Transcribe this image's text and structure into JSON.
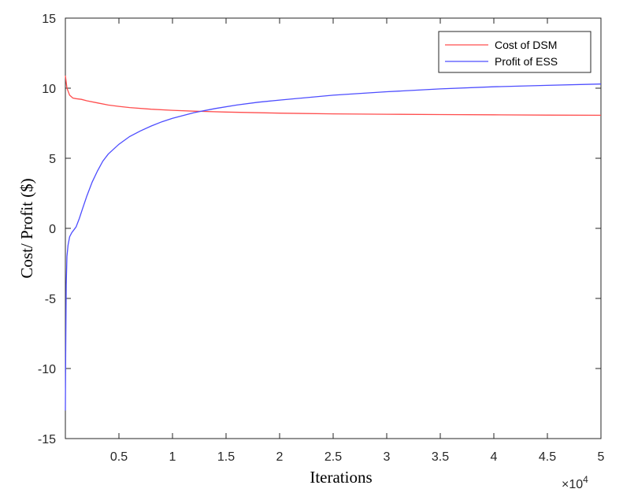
{
  "chart_data": {
    "type": "line",
    "title": "",
    "xlabel": "Iterations",
    "ylabel": "Cost/ Profit ($)",
    "xlim": [
      0,
      50000
    ],
    "ylim": [
      -15,
      15
    ],
    "x_exponent_label": "×10",
    "x_exponent_power": "4",
    "xticks": [
      5000,
      10000,
      15000,
      20000,
      25000,
      30000,
      35000,
      40000,
      45000,
      50000
    ],
    "xtick_labels": [
      "0.5",
      "1",
      "1.5",
      "2",
      "2.5",
      "3",
      "3.5",
      "4",
      "4.5",
      "5"
    ],
    "yticks": [
      -15,
      -10,
      -5,
      0,
      5,
      10,
      15
    ],
    "ytick_labels": [
      "-15",
      "-10",
      "-5",
      "0",
      "5",
      "10",
      "15"
    ],
    "grid": false,
    "legend_position": "top-right",
    "series": [
      {
        "name": "Cost of DSM",
        "color": "#ff4d4d",
        "x": [
          0,
          150,
          400,
          700,
          1000,
          1500,
          2000,
          3000,
          4000,
          5000,
          6000,
          8000,
          10000,
          12000,
          15000,
          20000,
          25000,
          30000,
          35000,
          40000,
          45000,
          50000
        ],
        "y": [
          10.9,
          10.0,
          9.5,
          9.3,
          9.25,
          9.2,
          9.1,
          8.95,
          8.8,
          8.7,
          8.62,
          8.5,
          8.42,
          8.36,
          8.3,
          8.22,
          8.17,
          8.14,
          8.12,
          8.1,
          8.08,
          8.07
        ]
      },
      {
        "name": "Profit of ESS",
        "color": "#4d4dff",
        "x": [
          0,
          30,
          80,
          150,
          250,
          400,
          600,
          800,
          1000,
          1300,
          1600,
          2000,
          2500,
          3000,
          3500,
          4000,
          5000,
          6000,
          7000,
          8000,
          9000,
          10000,
          12000,
          14000,
          16000,
          18000,
          20000,
          25000,
          30000,
          35000,
          40000,
          45000,
          50000
        ],
        "y": [
          -13,
          -9,
          -4,
          -2,
          -1.2,
          -0.6,
          -0.3,
          -0.1,
          0.1,
          0.7,
          1.4,
          2.3,
          3.3,
          4.1,
          4.8,
          5.3,
          6.0,
          6.55,
          6.95,
          7.3,
          7.6,
          7.85,
          8.25,
          8.55,
          8.8,
          9.0,
          9.15,
          9.5,
          9.75,
          9.95,
          10.1,
          10.2,
          10.3
        ]
      }
    ]
  }
}
